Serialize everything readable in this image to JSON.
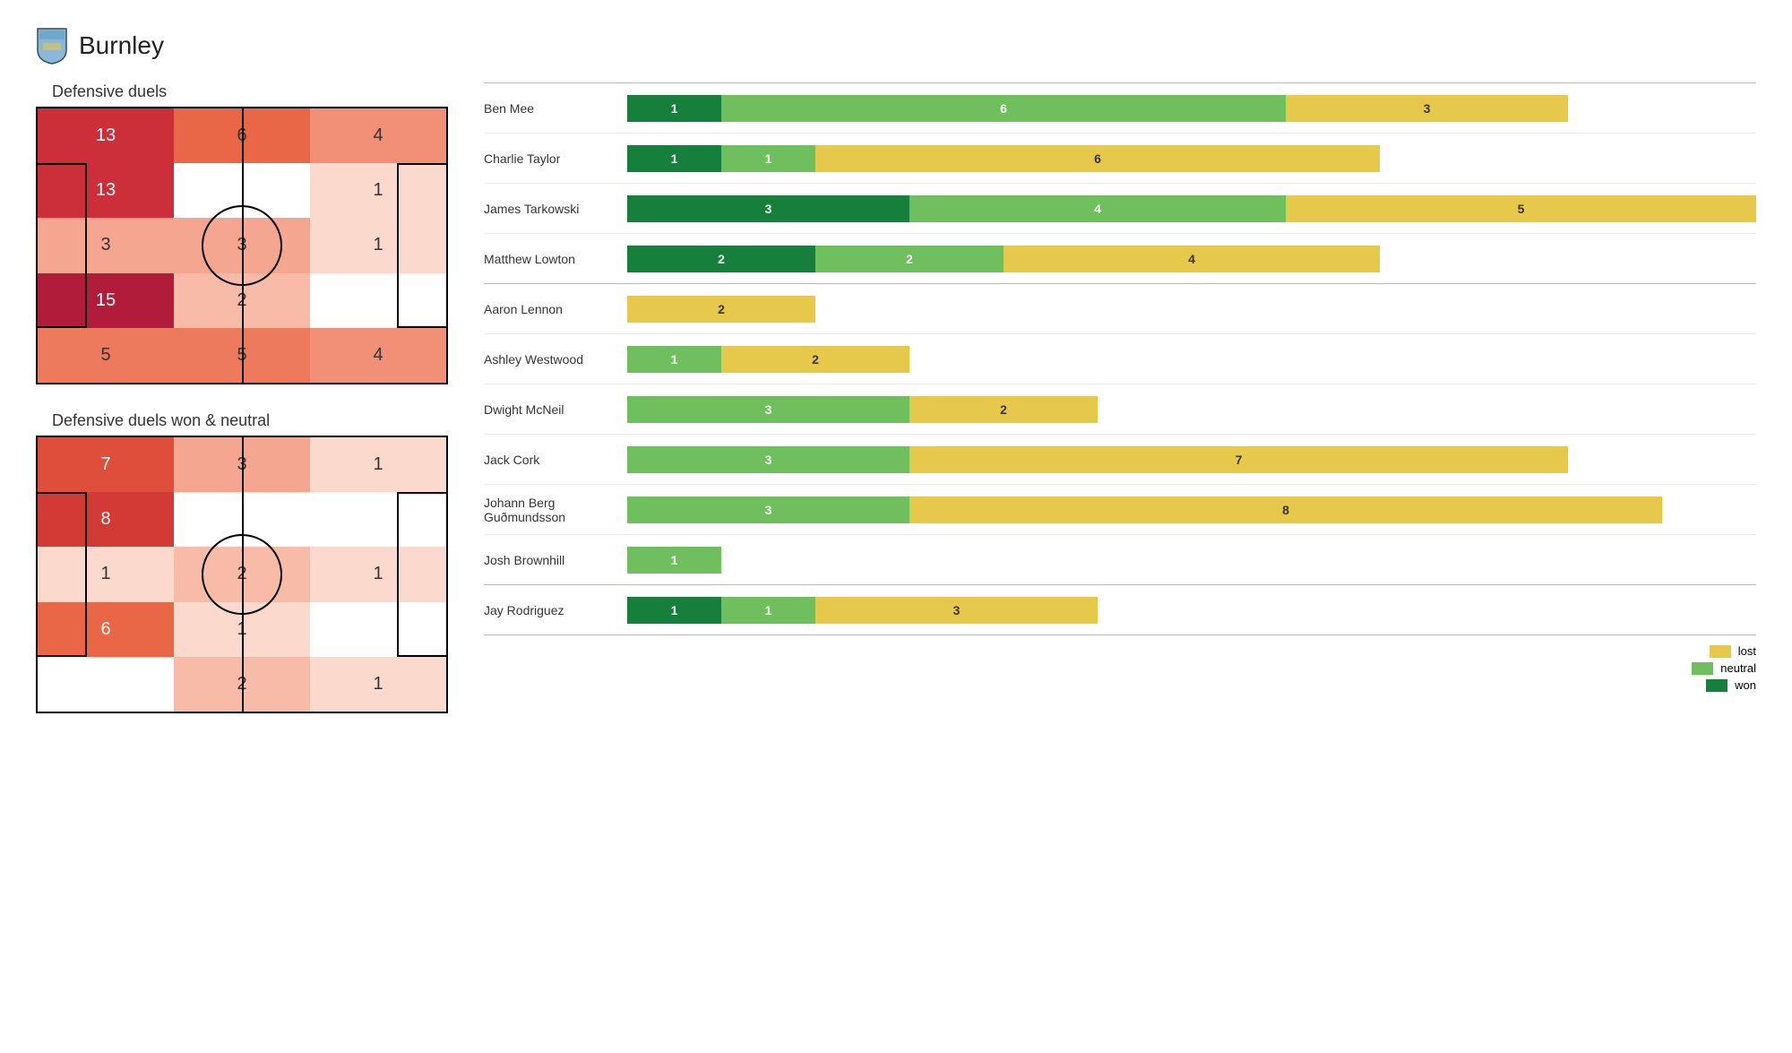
{
  "team": "Burnley",
  "badge_colors": {
    "top": "#8bb8d8",
    "bottom": "#6fa8cc",
    "outline": "#3a4a5a"
  },
  "colors": {
    "won": "#157f3b",
    "neutral": "#6fbf5e",
    "lost": "#e6c84a",
    "won_text": "#ffffff",
    "neutral_text": "#ffffff",
    "lost_text": "#333333",
    "border": "#bbbbbb",
    "row_border": "#eeeeee"
  },
  "heat_scale": {
    "0": "#ffffff",
    "1": "#fbd9cc",
    "2": "#f7bba8",
    "3": "#f4a690",
    "4": "#f19076",
    "5": "#ed7a5d",
    "6": "#e96647",
    "7": "#df4e3a",
    "8": "#d23a35",
    "13": "#cc2f3a",
    "15": "#b01c3a"
  },
  "pitches": [
    {
      "title": "Defensive duels",
      "cells": [
        {
          "v": 13,
          "t": "#fff"
        },
        {
          "v": 6,
          "t": "#333"
        },
        {
          "v": 4,
          "t": "#333"
        },
        {
          "v": 13,
          "t": "#fff"
        },
        {
          "v": 0,
          "t": ""
        },
        {
          "v": 1,
          "t": "#333"
        },
        {
          "v": 3,
          "t": "#333"
        },
        {
          "v": 3,
          "t": "#333"
        },
        {
          "v": 1,
          "t": "#333"
        },
        {
          "v": 15,
          "t": "#fff"
        },
        {
          "v": 2,
          "t": "#333"
        },
        {
          "v": 0,
          "t": ""
        },
        {
          "v": 5,
          "t": "#333"
        },
        {
          "v": 5,
          "t": "#333"
        },
        {
          "v": 4,
          "t": "#333"
        }
      ]
    },
    {
      "title": "Defensive duels won & neutral",
      "cells": [
        {
          "v": 7,
          "t": "#fff"
        },
        {
          "v": 3,
          "t": "#333"
        },
        {
          "v": 1,
          "t": "#333"
        },
        {
          "v": 8,
          "t": "#fff"
        },
        {
          "v": 0,
          "t": ""
        },
        {
          "v": 0,
          "t": ""
        },
        {
          "v": 1,
          "t": "#333"
        },
        {
          "v": 2,
          "t": "#333"
        },
        {
          "v": 1,
          "t": "#333"
        },
        {
          "v": 6,
          "t": "#fff"
        },
        {
          "v": 1,
          "t": "#333"
        },
        {
          "v": 0,
          "t": ""
        },
        {
          "v": 0,
          "t": ""
        },
        {
          "v": 2,
          "t": "#333"
        },
        {
          "v": 1,
          "t": "#333"
        }
      ]
    }
  ],
  "bar_max": 12,
  "groups": [
    {
      "divider_after": true,
      "players": [
        {
          "name": "Ben Mee",
          "won": 1,
          "neutral": 6,
          "lost": 3
        },
        {
          "name": "Charlie Taylor",
          "won": 1,
          "neutral": 1,
          "lost": 6
        },
        {
          "name": "James  Tarkowski",
          "won": 3,
          "neutral": 4,
          "lost": 5
        },
        {
          "name": "Matthew Lowton",
          "won": 2,
          "neutral": 2,
          "lost": 4
        }
      ]
    },
    {
      "divider_after": true,
      "players": [
        {
          "name": "Aaron  Lennon",
          "won": 0,
          "neutral": 0,
          "lost": 2
        },
        {
          "name": "Ashley Westwood",
          "won": 0,
          "neutral": 1,
          "lost": 2
        },
        {
          "name": "Dwight McNeil",
          "won": 0,
          "neutral": 3,
          "lost": 2
        },
        {
          "name": "Jack Cork",
          "won": 0,
          "neutral": 3,
          "lost": 7
        },
        {
          "name": "Johann  Berg  Guðmundsson",
          "won": 0,
          "neutral": 3,
          "lost": 8
        },
        {
          "name": "Josh Brownhill",
          "won": 0,
          "neutral": 1,
          "lost": 0
        }
      ]
    },
    {
      "divider_after": true,
      "players": [
        {
          "name": "Jay Rodriguez",
          "won": 1,
          "neutral": 1,
          "lost": 3
        }
      ]
    }
  ],
  "legend": [
    {
      "label": "lost",
      "key": "lost"
    },
    {
      "label": "neutral",
      "key": "neutral"
    },
    {
      "label": "won",
      "key": "won"
    }
  ]
}
